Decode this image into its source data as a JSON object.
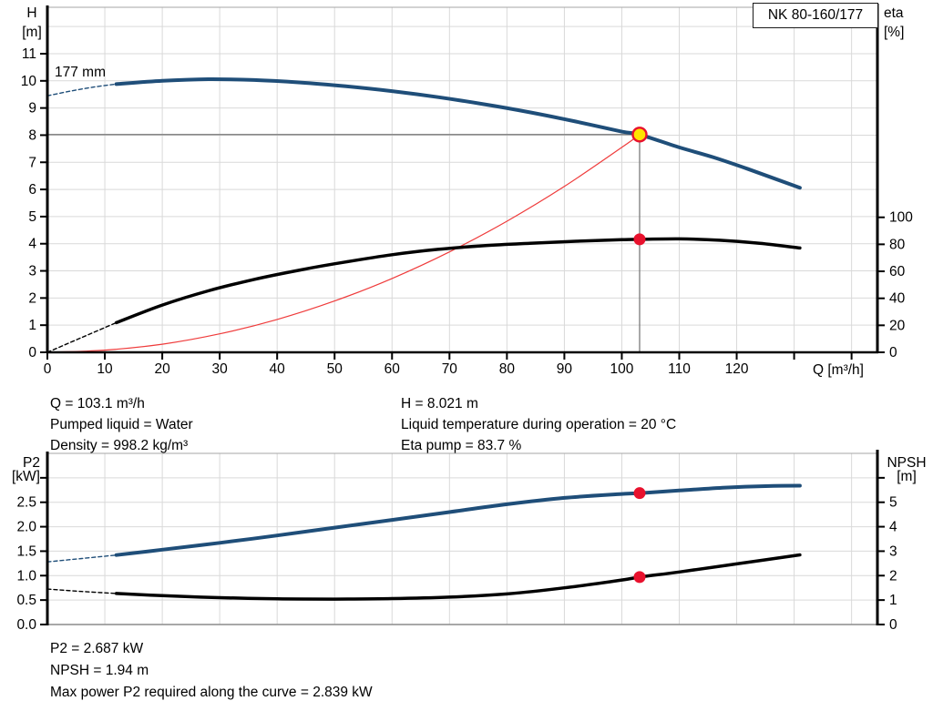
{
  "title_box": "NK 80-160/177",
  "labels": {
    "h_axis_1": "H",
    "h_axis_2": "[m]",
    "eta_axis_1": "eta",
    "eta_axis_2": "[%]",
    "q_axis": "Q [m³/h]",
    "p2_axis_1": "P2",
    "p2_axis_2": "[kW]",
    "npsh_axis_1": "NPSH",
    "npsh_axis_2": "[m]",
    "impeller": "177 mm"
  },
  "info_top_left": [
    "Q = 103.1 m³/h",
    "Pumped liquid = Water",
    "Density = 998.2 kg/m³"
  ],
  "info_top_right": [
    "H = 8.021 m",
    "Liquid temperature during operation = 20 °C",
    "Eta pump = 83.7 %"
  ],
  "info_bottom": [
    "P2 = 2.687 kW",
    "NPSH = 1.94 m",
    "Max power P2 required along the curve = 2.839 kW"
  ],
  "colors": {
    "curve_blue": "#1f4e79",
    "curve_black": "#000000",
    "system_red": "#ef3b3b",
    "marker_red": "#e8112d",
    "duty_yellow": "#ffe400",
    "grid": "#d9d9d9",
    "frame_gray": "#a6a6a6",
    "crosshair_gray": "#7a7a7a",
    "axis_black": "#000000"
  },
  "chart_data": [
    {
      "type": "line",
      "name": "head-efficiency-chart",
      "title": "NK 80-160/177",
      "xlabel": "Q [m³/h]",
      "ylabel_left": "H [m]",
      "ylabel_right": "eta [%]",
      "impeller_diameter_label": "177 mm",
      "x_axis": {
        "min": 0,
        "max": 144.5,
        "ticks": [
          0,
          10,
          20,
          30,
          40,
          50,
          60,
          70,
          80,
          90,
          100,
          110,
          120,
          130,
          140
        ],
        "tick_labels": [
          "0",
          "10",
          "20",
          "30",
          "40",
          "50",
          "60",
          "70",
          "80",
          "90",
          "100",
          "110",
          "120",
          "",
          ""
        ]
      },
      "left_axis": {
        "min": 0,
        "max": 12.71,
        "ticks": [
          0,
          1,
          2,
          3,
          4,
          5,
          6,
          7,
          8,
          9,
          10,
          11
        ],
        "tick_labels": [
          "0",
          "1",
          "2",
          "3",
          "4",
          "5",
          "6",
          "7",
          "8",
          "9",
          "10",
          "11"
        ]
      },
      "right_axis": {
        "min": 0,
        "max": 255.6,
        "ticks": [
          0,
          20,
          40,
          60,
          80,
          100
        ],
        "tick_labels": [
          "0",
          "20",
          "40",
          "60",
          "80",
          "100"
        ]
      },
      "grid_y": [
        1,
        2,
        3,
        4,
        5,
        6,
        7,
        8,
        9,
        10,
        11,
        12
      ],
      "crosshair": {
        "q": 103.1,
        "axis": "left",
        "value": 8.021
      },
      "series": [
        {
          "name": "system-curve",
          "axis": "left",
          "color": "#ef3b3b",
          "width": 1.2,
          "points": [
            [
              0,
              0
            ],
            [
              10,
              0.08
            ],
            [
              20,
              0.3
            ],
            [
              30,
              0.68
            ],
            [
              40,
              1.21
            ],
            [
              50,
              1.89
            ],
            [
              60,
              2.72
            ],
            [
              70,
              3.7
            ],
            [
              80,
              4.83
            ],
            [
              90,
              6.11
            ],
            [
              100,
              7.55
            ],
            [
              103.1,
              8.02
            ]
          ]
        },
        {
          "name": "eta-curve-dashed",
          "axis": "right",
          "color": "#000000",
          "width": 1.4,
          "dash": "4 3",
          "points": [
            [
              0,
              0
            ],
            [
              6,
              11
            ],
            [
              12,
              22
            ]
          ]
        },
        {
          "name": "eta-curve",
          "axis": "right",
          "color": "#000000",
          "width": 3.5,
          "points": [
            [
              12,
              22
            ],
            [
              20,
              35
            ],
            [
              28,
              45.5
            ],
            [
              36,
              54
            ],
            [
              44,
              61
            ],
            [
              52,
              67
            ],
            [
              60,
              72.3
            ],
            [
              68,
              76.3
            ],
            [
              76,
              79
            ],
            [
              84,
              80.8
            ],
            [
              92,
              82.3
            ],
            [
              100,
              83.4
            ],
            [
              103.1,
              83.7
            ],
            [
              110,
              84
            ],
            [
              117,
              83
            ],
            [
              124,
              80.8
            ],
            [
              131,
              77.3
            ]
          ]
        },
        {
          "name": "head-curve-dashed",
          "axis": "left",
          "color": "#1f4e79",
          "width": 1.4,
          "dash": "4 3",
          "points": [
            [
              0,
              9.45
            ],
            [
              4,
              9.62
            ],
            [
              8,
              9.77
            ],
            [
              12,
              9.88
            ]
          ]
        },
        {
          "name": "head-curve",
          "axis": "left",
          "color": "#1f4e79",
          "width": 4,
          "points": [
            [
              12,
              9.88
            ],
            [
              20,
              10.0
            ],
            [
              28,
              10.06
            ],
            [
              36,
              10.03
            ],
            [
              44,
              9.94
            ],
            [
              52,
              9.8
            ],
            [
              60,
              9.62
            ],
            [
              68,
              9.4
            ],
            [
              76,
              9.14
            ],
            [
              84,
              8.84
            ],
            [
              92,
              8.5
            ],
            [
              100,
              8.13
            ],
            [
              103.1,
              8.021
            ],
            [
              110,
              7.55
            ],
            [
              116,
              7.18
            ],
            [
              122,
              6.75
            ],
            [
              131,
              6.06
            ]
          ]
        }
      ],
      "markers": [
        {
          "kind": "duty",
          "q": 103.1,
          "axis": "left",
          "value": 8.021
        },
        {
          "kind": "dot",
          "q": 103.1,
          "axis": "right",
          "value": 83.7
        }
      ],
      "duty_point": {
        "Q_m3h": 103.1,
        "H_m": 8.021,
        "eta_pct": 83.7
      }
    },
    {
      "type": "line",
      "name": "p2-npsh-chart",
      "xlabel": "",
      "ylabel_left": "P2 [kW]",
      "ylabel_right": "NPSH [m]",
      "x_axis": {
        "min": 0,
        "max": 144.5,
        "ticks": [
          0,
          10,
          20,
          30,
          40,
          50,
          60,
          70,
          80,
          90,
          100,
          110,
          120,
          130,
          140
        ],
        "tick_labels": [
          "",
          "",
          "",
          "",
          "",
          "",
          "",
          "",
          "",
          "",
          "",
          "",
          "",
          "",
          ""
        ]
      },
      "left_axis": {
        "min": 0,
        "max": 3.5,
        "ticks": [
          0,
          0.5,
          1,
          1.5,
          2,
          2.5,
          3
        ],
        "tick_labels": [
          "0.0",
          "0.5",
          "1.0",
          "1.5",
          "2.0",
          "2.5",
          ""
        ]
      },
      "right_axis": {
        "min": 0,
        "max": 7,
        "ticks": [
          0,
          1,
          2,
          3,
          4,
          5,
          6
        ],
        "tick_labels": [
          "0",
          "1",
          "2",
          "3",
          "4",
          "5",
          ""
        ]
      },
      "grid_y": [
        0.5,
        1,
        1.5,
        2,
        2.5,
        3
      ],
      "series": [
        {
          "name": "p2-curve-dashed",
          "axis": "left",
          "color": "#1f4e79",
          "width": 1.4,
          "dash": "4 3",
          "points": [
            [
              0,
              1.28
            ],
            [
              6,
              1.35
            ],
            [
              12,
              1.42
            ]
          ]
        },
        {
          "name": "p2-curve",
          "axis": "left",
          "color": "#1f4e79",
          "width": 4,
          "points": [
            [
              12,
              1.42
            ],
            [
              20,
              1.53
            ],
            [
              30,
              1.67
            ],
            [
              40,
              1.82
            ],
            [
              50,
              1.98
            ],
            [
              60,
              2.14
            ],
            [
              70,
              2.3
            ],
            [
              80,
              2.46
            ],
            [
              90,
              2.59
            ],
            [
              100,
              2.67
            ],
            [
              103.1,
              2.687
            ],
            [
              110,
              2.74
            ],
            [
              118,
              2.8
            ],
            [
              125,
              2.83
            ],
            [
              131,
              2.84
            ]
          ]
        },
        {
          "name": "npsh-curve-dashed",
          "axis": "right",
          "color": "#000000",
          "width": 1.4,
          "dash": "4 3",
          "points": [
            [
              0,
              1.45
            ],
            [
              6,
              1.35
            ],
            [
              12,
              1.27
            ]
          ]
        },
        {
          "name": "npsh-curve",
          "axis": "right",
          "color": "#000000",
          "width": 3.5,
          "points": [
            [
              12,
              1.27
            ],
            [
              20,
              1.18
            ],
            [
              30,
              1.1
            ],
            [
              40,
              1.05
            ],
            [
              50,
              1.04
            ],
            [
              60,
              1.06
            ],
            [
              70,
              1.12
            ],
            [
              80,
              1.25
            ],
            [
              90,
              1.5
            ],
            [
              100,
              1.82
            ],
            [
              103.1,
              1.94
            ],
            [
              110,
              2.15
            ],
            [
              120,
              2.48
            ],
            [
              131,
              2.85
            ]
          ]
        }
      ],
      "markers": [
        {
          "kind": "dot",
          "q": 103.1,
          "axis": "left",
          "value": 2.687
        },
        {
          "kind": "dot",
          "q": 103.1,
          "axis": "right",
          "value": 1.94
        }
      ],
      "duty_point": {
        "Q_m3h": 103.1,
        "P2_kW": 2.687,
        "NPSH_m": 1.94,
        "max_P2_kW": 2.839
      }
    }
  ]
}
